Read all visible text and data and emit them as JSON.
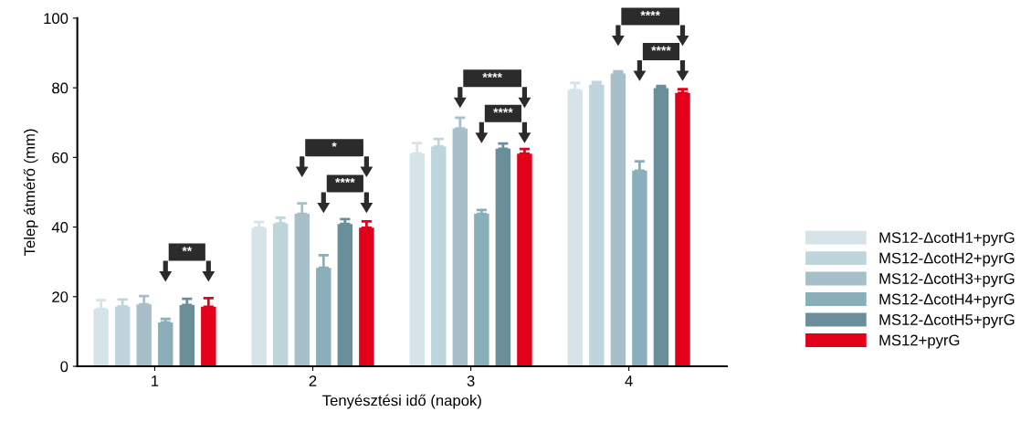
{
  "chart_data": {
    "type": "bar",
    "xlabel": "Tenyésztési idő (napok)",
    "ylabel": "Telep átmérő (mm)",
    "categories": [
      "1",
      "2",
      "3",
      "4"
    ],
    "series": [
      {
        "name": "MS12-ΔcotH1+pyrG",
        "color": "#d6e4e9",
        "values": [
          16.5,
          39.8,
          61.1,
          79.4
        ],
        "errors": [
          [
            16.5,
            19.0
          ],
          [
            39.8,
            41.4
          ],
          [
            61.1,
            64.1
          ],
          [
            79.4,
            81.4
          ]
        ]
      },
      {
        "name": "MS12-ΔcotH2+pyrG",
        "color": "#bfd5dc",
        "values": [
          17.2,
          41.0,
          63.1,
          80.9
        ],
        "errors": [
          [
            17.2,
            19.2
          ],
          [
            41.0,
            42.7
          ],
          [
            63.1,
            65.3
          ],
          [
            80.9,
            81.6
          ]
        ]
      },
      {
        "name": "MS12-ΔcotH3+pyrG",
        "color": "#a6bfc8",
        "values": [
          17.8,
          43.8,
          68.3,
          84.1
        ],
        "errors": [
          [
            17.8,
            20.2
          ],
          [
            43.8,
            46.8
          ],
          [
            68.3,
            71.4
          ],
          [
            84.1,
            84.7
          ]
        ]
      },
      {
        "name": "MS12-ΔcotH4+pyrG",
        "color": "#8aafba",
        "values": [
          12.6,
          28.3,
          43.8,
          56.2
        ],
        "errors": [
          [
            12.6,
            13.6
          ],
          [
            28.3,
            31.9
          ],
          [
            43.8,
            44.9
          ],
          [
            56.2,
            58.9
          ]
        ]
      },
      {
        "name": "MS12-ΔcotH5+pyrG",
        "color": "#6a8f9a",
        "values": [
          17.6,
          40.9,
          62.5,
          79.9
        ],
        "errors": [
          [
            17.6,
            19.4
          ],
          [
            40.9,
            42.3
          ],
          [
            62.5,
            64.0
          ],
          [
            79.9,
            80.5
          ]
        ]
      },
      {
        "name": "MS12+pyrG",
        "color": "#e2001a",
        "values": [
          17.1,
          39.8,
          61.1,
          78.5
        ],
        "errors": [
          [
            17.1,
            19.6
          ],
          [
            39.8,
            41.6
          ],
          [
            61.1,
            62.4
          ],
          [
            78.5,
            79.6
          ]
        ]
      }
    ],
    "ylim": [
      0,
      100
    ],
    "yticks": [
      0,
      20,
      40,
      60,
      80,
      100
    ],
    "grid": false,
    "legend": "right",
    "annotations": [
      "**",
      "*",
      "****",
      "****",
      "****",
      "****",
      "****"
    ]
  }
}
